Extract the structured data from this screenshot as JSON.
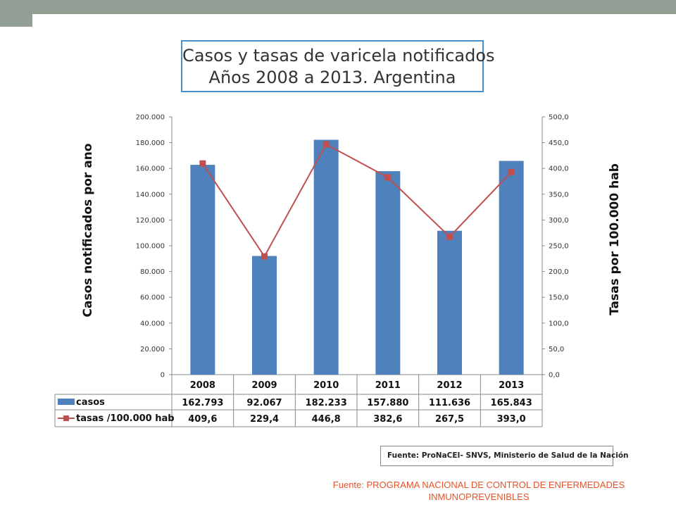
{
  "page": {
    "footnote_line1": "Fuente: PROGRAMA NACIONAL DE CONTROL DE ENFERMEDADES",
    "footnote_line2": "INMUNOPREVENIBLES",
    "source_box": "Fuente: ProNaCEI- SNVS, Ministerio de Salud de la Nación",
    "colors": {
      "topbar": "#939f94",
      "bars": "#4f81bd",
      "line": "#c0504d",
      "title_border": "#4a90c8",
      "footnote": "#e4532c"
    }
  },
  "chart_data": {
    "type": "bar",
    "title": "Casos y tasas de varicela notificados",
    "subtitle": "Años 2008 a 2013. Argentina",
    "categories": [
      "2008",
      "2009",
      "2010",
      "2011",
      "2012",
      "2013"
    ],
    "ylabel": "Casos notificados por ano",
    "y2label": "Tasas  por 100.000 hab",
    "ylim": [
      0,
      200000
    ],
    "y2lim": [
      0,
      500
    ],
    "yticks": [
      "0",
      "20.000",
      "40.000",
      "60.000",
      "80.000",
      "100.000",
      "120.000",
      "140.000",
      "160.000",
      "180.000",
      "200.000"
    ],
    "y2ticks": [
      "0,0",
      "50,0",
      "100,0",
      "150,0",
      "200,0",
      "250,0",
      "300,0",
      "350,0",
      "400,0",
      "450,0",
      "500,0"
    ],
    "grid": false,
    "legend": "data table below chart",
    "series": [
      {
        "name": "casos",
        "kind": "bar",
        "axis": "left",
        "values": [
          162793,
          92067,
          182233,
          157880,
          111636,
          165843
        ],
        "labels": [
          "162.793",
          "92.067",
          "182.233",
          "157.880",
          "111.636",
          "165.843"
        ]
      },
      {
        "name": "tasas /100.000 hab",
        "kind": "line",
        "axis": "right",
        "values": [
          409.6,
          229.4,
          446.8,
          382.6,
          267.5,
          393.0
        ],
        "labels": [
          "409,6",
          "229,4",
          "446,8",
          "382,6",
          "267,5",
          "393,0"
        ]
      }
    ]
  }
}
